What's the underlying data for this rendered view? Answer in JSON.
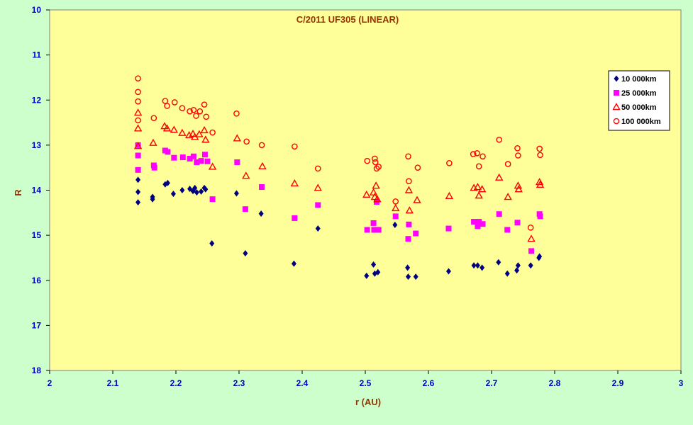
{
  "chart_data": {
    "type": "scatter",
    "title": "C/2011 UF305 (LINEAR)",
    "xlabel": "r (AU)",
    "ylabel": "R",
    "xlim": [
      2,
      3
    ],
    "ylim": [
      10,
      18
    ],
    "y_inverted": true,
    "x_ticks": [
      "2",
      "2.1",
      "2.2",
      "2.3",
      "2.4",
      "2.5",
      "2.6",
      "2.7",
      "2.8",
      "2.9",
      "3"
    ],
    "y_ticks": [
      "10",
      "11",
      "12",
      "13",
      "14",
      "15",
      "16",
      "17",
      "18"
    ],
    "grid": false,
    "legend_position": "right",
    "colors": {
      "page_background": "#ccffcc",
      "plot_background": "#ffff99",
      "series_10000": "#000080",
      "series_25000": "#ff00ff",
      "series_50000": "#ff0000",
      "series_100000": "#ff0000"
    },
    "series": [
      {
        "name": "10 000km",
        "marker": "diamond",
        "points": [
          [
            2.14,
            13.77
          ],
          [
            2.14,
            14.04
          ],
          [
            2.14,
            14.27
          ],
          [
            2.163,
            14.15
          ],
          [
            2.163,
            14.2
          ],
          [
            2.183,
            13.87
          ],
          [
            2.187,
            13.84
          ],
          [
            2.196,
            14.08
          ],
          [
            2.21,
            14.0
          ],
          [
            2.222,
            13.97
          ],
          [
            2.227,
            14.02
          ],
          [
            2.23,
            13.95
          ],
          [
            2.233,
            14.05
          ],
          [
            2.24,
            14.03
          ],
          [
            2.245,
            13.95
          ],
          [
            2.247,
            13.98
          ],
          [
            2.257,
            15.18
          ],
          [
            2.296,
            14.07
          ],
          [
            2.31,
            15.4
          ],
          [
            2.335,
            14.52
          ],
          [
            2.387,
            15.63
          ],
          [
            2.425,
            14.85
          ],
          [
            2.502,
            15.9
          ],
          [
            2.513,
            15.65
          ],
          [
            2.515,
            15.85
          ],
          [
            2.52,
            15.82
          ],
          [
            2.547,
            14.77
          ],
          [
            2.567,
            15.72
          ],
          [
            2.568,
            15.92
          ],
          [
            2.58,
            15.92
          ],
          [
            2.632,
            15.8
          ],
          [
            2.672,
            15.67
          ],
          [
            2.678,
            15.67
          ],
          [
            2.685,
            15.72
          ],
          [
            2.711,
            15.6
          ],
          [
            2.725,
            15.85
          ],
          [
            2.74,
            15.78
          ],
          [
            2.742,
            15.67
          ],
          [
            2.762,
            15.67
          ],
          [
            2.775,
            15.5
          ],
          [
            2.776,
            15.47
          ]
        ]
      },
      {
        "name": "25 000km",
        "marker": "square",
        "points": [
          [
            2.14,
            13.0
          ],
          [
            2.14,
            13.23
          ],
          [
            2.14,
            13.55
          ],
          [
            2.165,
            13.45
          ],
          [
            2.166,
            13.5
          ],
          [
            2.183,
            13.12
          ],
          [
            2.187,
            13.15
          ],
          [
            2.197,
            13.28
          ],
          [
            2.211,
            13.27
          ],
          [
            2.222,
            13.3
          ],
          [
            2.228,
            13.25
          ],
          [
            2.233,
            13.38
          ],
          [
            2.24,
            13.35
          ],
          [
            2.246,
            13.21
          ],
          [
            2.25,
            13.36
          ],
          [
            2.258,
            14.2
          ],
          [
            2.297,
            13.38
          ],
          [
            2.31,
            14.42
          ],
          [
            2.336,
            13.93
          ],
          [
            2.388,
            14.62
          ],
          [
            2.425,
            14.33
          ],
          [
            2.503,
            14.88
          ],
          [
            2.513,
            14.73
          ],
          [
            2.514,
            14.88
          ],
          [
            2.518,
            14.26
          ],
          [
            2.521,
            14.88
          ],
          [
            2.548,
            14.58
          ],
          [
            2.568,
            15.08
          ],
          [
            2.569,
            14.76
          ],
          [
            2.58,
            14.96
          ],
          [
            2.632,
            14.85
          ],
          [
            2.672,
            14.7
          ],
          [
            2.678,
            14.8
          ],
          [
            2.68,
            14.7
          ],
          [
            2.686,
            14.75
          ],
          [
            2.712,
            14.53
          ],
          [
            2.725,
            14.88
          ],
          [
            2.741,
            14.72
          ],
          [
            2.763,
            15.35
          ],
          [
            2.776,
            14.53
          ],
          [
            2.777,
            14.58
          ]
        ]
      },
      {
        "name": "50 000km",
        "marker": "triangle",
        "points": [
          [
            2.14,
            12.28
          ],
          [
            2.14,
            12.63
          ],
          [
            2.14,
            13.02
          ],
          [
            2.164,
            12.95
          ],
          [
            2.182,
            12.58
          ],
          [
            2.186,
            12.63
          ],
          [
            2.197,
            12.66
          ],
          [
            2.21,
            12.73
          ],
          [
            2.221,
            12.78
          ],
          [
            2.227,
            12.75
          ],
          [
            2.23,
            12.82
          ],
          [
            2.237,
            12.76
          ],
          [
            2.245,
            12.67
          ],
          [
            2.247,
            12.88
          ],
          [
            2.258,
            13.48
          ],
          [
            2.297,
            12.85
          ],
          [
            2.311,
            13.68
          ],
          [
            2.337,
            13.47
          ],
          [
            2.388,
            13.85
          ],
          [
            2.425,
            13.95
          ],
          [
            2.502,
            14.1
          ],
          [
            2.513,
            14.05
          ],
          [
            2.515,
            14.15
          ],
          [
            2.517,
            13.9
          ],
          [
            2.519,
            14.2
          ],
          [
            2.548,
            14.4
          ],
          [
            2.569,
            14.0
          ],
          [
            2.57,
            14.45
          ],
          [
            2.582,
            14.22
          ],
          [
            2.633,
            14.13
          ],
          [
            2.672,
            13.95
          ],
          [
            2.678,
            13.93
          ],
          [
            2.68,
            14.12
          ],
          [
            2.685,
            13.98
          ],
          [
            2.712,
            13.72
          ],
          [
            2.726,
            14.15
          ],
          [
            2.742,
            13.9
          ],
          [
            2.743,
            13.98
          ],
          [
            2.763,
            15.08
          ],
          [
            2.776,
            13.82
          ],
          [
            2.777,
            13.88
          ]
        ]
      },
      {
        "name": "100 000km",
        "marker": "circle",
        "points": [
          [
            2.14,
            11.52
          ],
          [
            2.14,
            11.82
          ],
          [
            2.14,
            12.03
          ],
          [
            2.14,
            12.45
          ],
          [
            2.165,
            12.4
          ],
          [
            2.183,
            12.02
          ],
          [
            2.186,
            12.13
          ],
          [
            2.198,
            12.05
          ],
          [
            2.21,
            12.18
          ],
          [
            2.222,
            12.25
          ],
          [
            2.228,
            12.22
          ],
          [
            2.232,
            12.35
          ],
          [
            2.238,
            12.25
          ],
          [
            2.245,
            12.1
          ],
          [
            2.248,
            12.37
          ],
          [
            2.258,
            12.72
          ],
          [
            2.296,
            12.3
          ],
          [
            2.312,
            12.92
          ],
          [
            2.336,
            13.0
          ],
          [
            2.388,
            13.03
          ],
          [
            2.425,
            13.52
          ],
          [
            2.503,
            13.35
          ],
          [
            2.515,
            13.3
          ],
          [
            2.516,
            13.38
          ],
          [
            2.518,
            13.52
          ],
          [
            2.521,
            13.48
          ],
          [
            2.548,
            14.25
          ],
          [
            2.568,
            13.25
          ],
          [
            2.569,
            13.8
          ],
          [
            2.583,
            13.5
          ],
          [
            2.633,
            13.4
          ],
          [
            2.671,
            13.2
          ],
          [
            2.677,
            13.18
          ],
          [
            2.68,
            13.47
          ],
          [
            2.686,
            13.25
          ],
          [
            2.712,
            12.88
          ],
          [
            2.726,
            13.42
          ],
          [
            2.741,
            13.07
          ],
          [
            2.742,
            13.23
          ],
          [
            2.762,
            14.83
          ],
          [
            2.776,
            13.08
          ],
          [
            2.777,
            13.22
          ]
        ]
      }
    ]
  }
}
